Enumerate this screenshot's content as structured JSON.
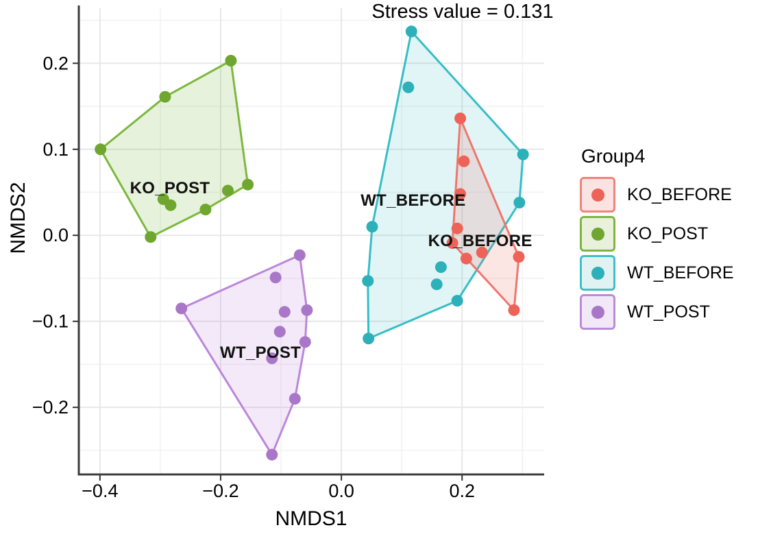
{
  "title": "Stress value = 0.131",
  "axes": {
    "x": {
      "label": "NMDS1",
      "ticks": [
        -0.4,
        -0.2,
        0.0,
        0.2
      ],
      "tick_labels": [
        "−0.4",
        "−0.2",
        "0.0",
        "0.2"
      ],
      "minor": [
        -0.3,
        -0.1,
        0.1,
        0.3
      ]
    },
    "y": {
      "label": "NMDS2",
      "ticks": [
        0.2,
        0.1,
        0.0,
        -0.1,
        -0.2
      ],
      "tick_labels": [
        "0.2",
        "0.1",
        "0.0",
        "−0.1",
        "−0.2"
      ],
      "minor": [
        0.25,
        0.15,
        0.05,
        -0.05,
        -0.15,
        -0.25
      ]
    }
  },
  "legend": {
    "title": "Group4",
    "entries": [
      {
        "label": "KO_BEFORE",
        "box_fill": "#FAE3E1",
        "border": "#F0837B",
        "dot": "#ED6358"
      },
      {
        "label": "KO_POST",
        "box_fill": "#E9F0DC",
        "border": "#7FB441",
        "dot": "#6FA62F"
      },
      {
        "label": "WT_BEFORE",
        "box_fill": "#E1F2F2",
        "border": "#3FBFC6",
        "dot": "#2CB0B9"
      },
      {
        "label": "WT_POST",
        "box_fill": "#F1E8F8",
        "border": "#BB8BD8",
        "dot": "#A877C7"
      }
    ]
  },
  "chart_data": {
    "type": "scatter",
    "title": "Stress value = 0.131",
    "xlabel": "NMDS1",
    "ylabel": "NMDS2",
    "xlim": [
      -0.435,
      0.336
    ],
    "ylim": [
      -0.278,
      0.264
    ],
    "grid": "on",
    "legend_position": "right",
    "series": [
      {
        "name": "KO_BEFORE",
        "dot": "#ED6358",
        "line": "#F0766C",
        "fill": "rgba(240,118,108,0.18)",
        "points": [
          [
            0.197,
            0.136
          ],
          [
            0.203,
            0.086
          ],
          [
            0.197,
            0.048
          ],
          [
            0.192,
            0.008
          ],
          [
            0.184,
            -0.009
          ],
          [
            0.207,
            -0.027
          ],
          [
            0.233,
            -0.02
          ],
          [
            0.294,
            -0.025
          ],
          [
            0.286,
            -0.087
          ]
        ],
        "hull": [
          [
            0.197,
            0.136
          ],
          [
            0.294,
            -0.025
          ],
          [
            0.286,
            -0.087
          ],
          [
            0.184,
            -0.009
          ]
        ],
        "annotation": {
          "text": "KO_BEFORE",
          "x": 0.23,
          "y": -0.007
        }
      },
      {
        "name": "KO_POST",
        "dot": "#6FA62F",
        "line": "#7CB83E",
        "fill": "rgba(124,184,62,0.18)",
        "points": [
          [
            -0.399,
            0.1
          ],
          [
            -0.292,
            0.161
          ],
          [
            -0.183,
            0.203
          ],
          [
            -0.155,
            0.059
          ],
          [
            -0.188,
            0.052
          ],
          [
            -0.295,
            0.042
          ],
          [
            -0.283,
            0.035
          ],
          [
            -0.225,
            0.03
          ],
          [
            -0.316,
            -0.002
          ]
        ],
        "hull": [
          [
            -0.399,
            0.1
          ],
          [
            -0.292,
            0.161
          ],
          [
            -0.183,
            0.203
          ],
          [
            -0.155,
            0.059
          ],
          [
            -0.225,
            0.03
          ],
          [
            -0.316,
            -0.002
          ]
        ],
        "annotation": {
          "text": "KO_POST",
          "x": -0.284,
          "y": 0.054
        }
      },
      {
        "name": "WT_BEFORE",
        "dot": "#2CB0B9",
        "line": "#35BEC6",
        "fill": "rgba(53,190,198,0.15)",
        "points": [
          [
            0.116,
            0.237
          ],
          [
            0.111,
            0.172
          ],
          [
            0.301,
            0.094
          ],
          [
            0.295,
            0.038
          ],
          [
            0.051,
            0.01
          ],
          [
            0.165,
            -0.037
          ],
          [
            0.044,
            -0.053
          ],
          [
            0.158,
            -0.057
          ],
          [
            0.192,
            -0.076
          ],
          [
            0.045,
            -0.12
          ]
        ],
        "hull": [
          [
            0.116,
            0.237
          ],
          [
            0.301,
            0.094
          ],
          [
            0.295,
            0.038
          ],
          [
            0.192,
            -0.076
          ],
          [
            0.045,
            -0.12
          ],
          [
            0.044,
            -0.053
          ],
          [
            0.051,
            0.01
          ]
        ],
        "annotation": {
          "text": "WT_BEFORE",
          "x": 0.119,
          "y": 0.04
        }
      },
      {
        "name": "WT_POST",
        "dot": "#A877C7",
        "line": "#BA87DA",
        "fill": "rgba(186,135,218,0.18)",
        "points": [
          [
            -0.069,
            -0.023
          ],
          [
            -0.109,
            -0.049
          ],
          [
            -0.265,
            -0.085
          ],
          [
            -0.094,
            -0.089
          ],
          [
            -0.057,
            -0.087
          ],
          [
            -0.102,
            -0.112
          ],
          [
            -0.06,
            -0.124
          ],
          [
            -0.115,
            -0.143
          ],
          [
            -0.077,
            -0.19
          ],
          [
            -0.115,
            -0.255
          ]
        ],
        "hull": [
          [
            -0.069,
            -0.023
          ],
          [
            -0.057,
            -0.087
          ],
          [
            -0.06,
            -0.124
          ],
          [
            -0.077,
            -0.19
          ],
          [
            -0.115,
            -0.255
          ],
          [
            -0.265,
            -0.085
          ]
        ],
        "annotation": {
          "text": "WT_POST",
          "x": -0.134,
          "y": -0.137
        }
      }
    ]
  }
}
